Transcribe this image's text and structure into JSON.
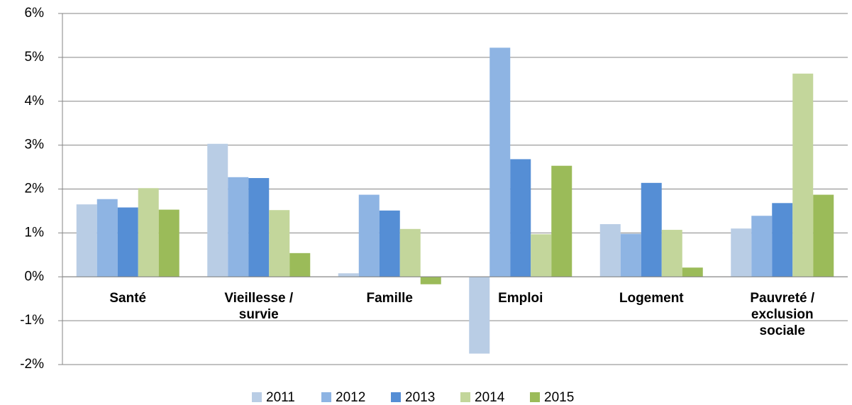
{
  "chart_data": {
    "type": "bar",
    "categories": [
      "Santé",
      "Vieillesse / survie",
      "Famille",
      "Emploi",
      "Logement",
      "Pauvreté / exclusion sociale"
    ],
    "series": [
      {
        "name": "2011",
        "color": "#b9cde5",
        "values": [
          1.65,
          3.03,
          0.08,
          -1.75,
          1.2,
          1.1
        ]
      },
      {
        "name": "2012",
        "color": "#8eb4e3",
        "values": [
          1.77,
          2.27,
          1.87,
          5.22,
          0.98,
          1.39
        ]
      },
      {
        "name": "2013",
        "color": "#558ed5",
        "values": [
          1.58,
          2.25,
          1.51,
          2.68,
          2.14,
          1.68
        ]
      },
      {
        "name": "2014",
        "color": "#c3d69b",
        "values": [
          2.02,
          1.52,
          1.09,
          0.97,
          1.07,
          4.63
        ]
      },
      {
        "name": "2015",
        "color": "#9bbb59",
        "values": [
          1.53,
          0.54,
          -0.17,
          2.53,
          0.21,
          1.87
        ]
      }
    ],
    "ylim": [
      -2,
      6
    ],
    "yticks": [
      {
        "value": -2,
        "label": "-2%"
      },
      {
        "value": -1,
        "label": "-1%"
      },
      {
        "value": 0,
        "label": "0%"
      },
      {
        "value": 1,
        "label": "1%"
      },
      {
        "value": 2,
        "label": "2%"
      },
      {
        "value": 3,
        "label": "3%"
      },
      {
        "value": 4,
        "label": "4%"
      },
      {
        "value": 5,
        "label": "5%"
      },
      {
        "value": 6,
        "label": "6%"
      }
    ],
    "grid": true,
    "legend": "bottom"
  }
}
